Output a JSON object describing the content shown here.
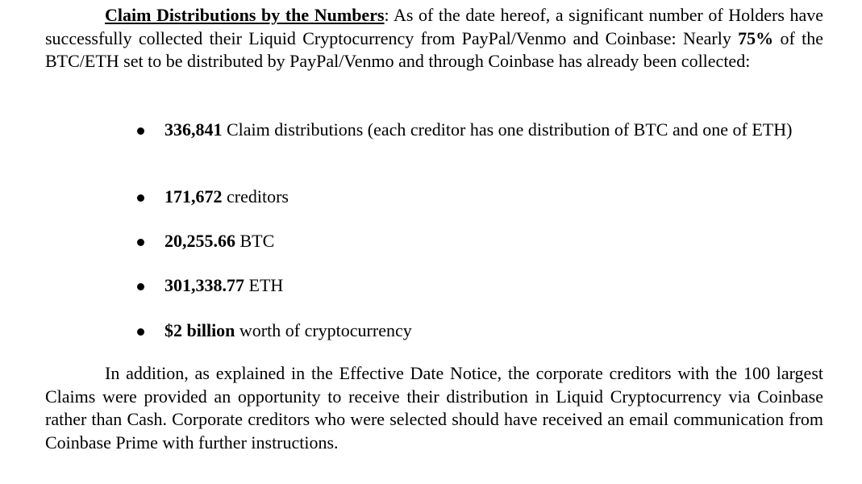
{
  "intro": {
    "heading": "Claim Distributions by the Numbers",
    "heading_colon": ":",
    "text_a": " As of the date hereof, a significant number of Holders have successfully collected their Liquid Cryptocurrency from PayPal/Venmo and Coinbase: Nearly ",
    "highlight": "75%",
    "text_b": " of the BTC/ETH set to be distributed by PayPal/Venmo and through Coinbase has already been collected:"
  },
  "bullets": [
    {
      "value": "336,841",
      "text": " Claim distributions (each creditor has one distribution of BTC and one of ETH)"
    },
    {
      "value": "171,672",
      "text": " creditors"
    },
    {
      "value": "20,255.66",
      "text": " BTC"
    },
    {
      "value": "301,338.77",
      "text": " ETH"
    },
    {
      "value": "$2 billion",
      "text": " worth of cryptocurrency"
    }
  ],
  "closing": {
    "text": "In addition, as explained in the Effective Date Notice, the corporate creditors with the 100 largest Claims were provided an opportunity to receive their distribution in Liquid Cryptocurrency via Coinbase rather than Cash. Corporate creditors who were selected should have received an email communication from Coinbase Prime with further instructions."
  }
}
